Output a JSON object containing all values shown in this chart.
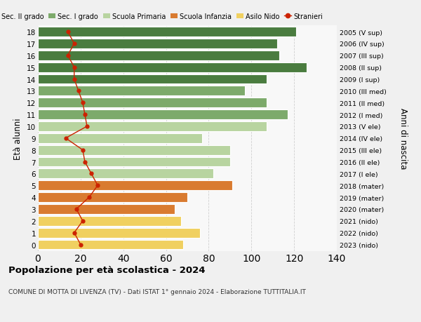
{
  "ages": [
    18,
    17,
    16,
    15,
    14,
    13,
    12,
    11,
    10,
    9,
    8,
    7,
    6,
    5,
    4,
    3,
    2,
    1,
    0
  ],
  "right_labels": [
    "2005 (V sup)",
    "2006 (IV sup)",
    "2007 (III sup)",
    "2008 (II sup)",
    "2009 (I sup)",
    "2010 (III med)",
    "2011 (II med)",
    "2012 (I med)",
    "2013 (V ele)",
    "2014 (IV ele)",
    "2015 (III ele)",
    "2016 (II ele)",
    "2017 (I ele)",
    "2018 (mater)",
    "2019 (mater)",
    "2020 (mater)",
    "2021 (nido)",
    "2022 (nido)",
    "2023 (nido)"
  ],
  "bar_values": [
    121,
    112,
    113,
    126,
    107,
    97,
    107,
    117,
    107,
    77,
    90,
    90,
    82,
    91,
    70,
    64,
    67,
    76,
    68
  ],
  "bar_colors": [
    "#4a7c3f",
    "#4a7c3f",
    "#4a7c3f",
    "#4a7c3f",
    "#4a7c3f",
    "#7daa6b",
    "#7daa6b",
    "#7daa6b",
    "#b8d4a0",
    "#b8d4a0",
    "#b8d4a0",
    "#b8d4a0",
    "#b8d4a0",
    "#d97b30",
    "#d97b30",
    "#d97b30",
    "#f0d060",
    "#f0d060",
    "#f0d060"
  ],
  "stranieri_values": [
    14,
    17,
    14,
    17,
    17,
    19,
    21,
    22,
    23,
    13,
    21,
    22,
    25,
    28,
    24,
    18,
    21,
    17,
    20
  ],
  "legend_labels": [
    "Sec. II grado",
    "Sec. I grado",
    "Scuola Primaria",
    "Scuola Infanzia",
    "Asilo Nido",
    "Stranieri"
  ],
  "legend_colors": [
    "#4a7c3f",
    "#7daa6b",
    "#b8d4a0",
    "#d97b30",
    "#f0d060",
    "#cc2200"
  ],
  "ylabel": "Età alunni",
  "right_ylabel": "Anni di nascita",
  "title": "Popolazione per età scolastica - 2024",
  "subtitle": "COMUNE DI MOTTA DI LIVENZA (TV) - Dati ISTAT 1° gennaio 2024 - Elaborazione TUTTITALIA.IT",
  "xlim": [
    0,
    140
  ],
  "xticks": [
    0,
    20,
    40,
    60,
    80,
    100,
    120,
    140
  ],
  "background_color": "#f0f0f0",
  "bar_background": "#f8f8f8",
  "grid_color": "#d0d0d0"
}
